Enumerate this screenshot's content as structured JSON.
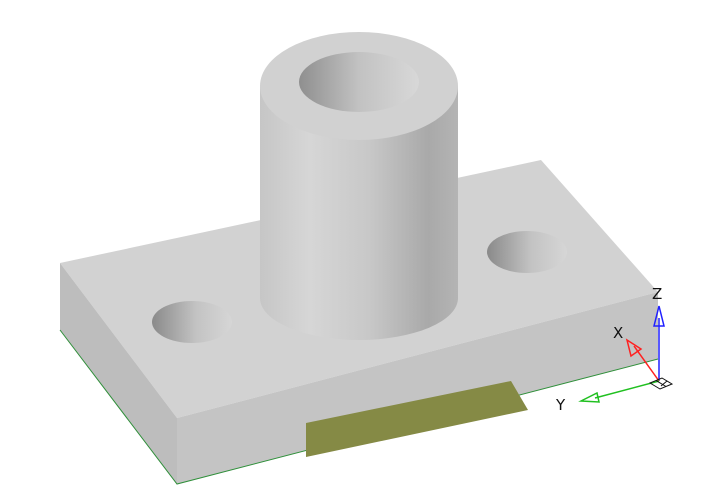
{
  "viewport": {
    "background": "#ffffff",
    "model": {
      "base_top_color": "#d2d2d2",
      "base_front_color": "#c4c4c4",
      "base_side_color": "#b8b8b8",
      "selected_face_color": "#858a45",
      "edge_color": "#2f8f3a"
    },
    "triad": {
      "x_label": "X",
      "y_label": "Y",
      "z_label": "Z",
      "x_color": "#ff2020",
      "y_color": "#20c020",
      "z_color": "#2020ff",
      "origin_icon": "grid-origin-icon"
    }
  }
}
